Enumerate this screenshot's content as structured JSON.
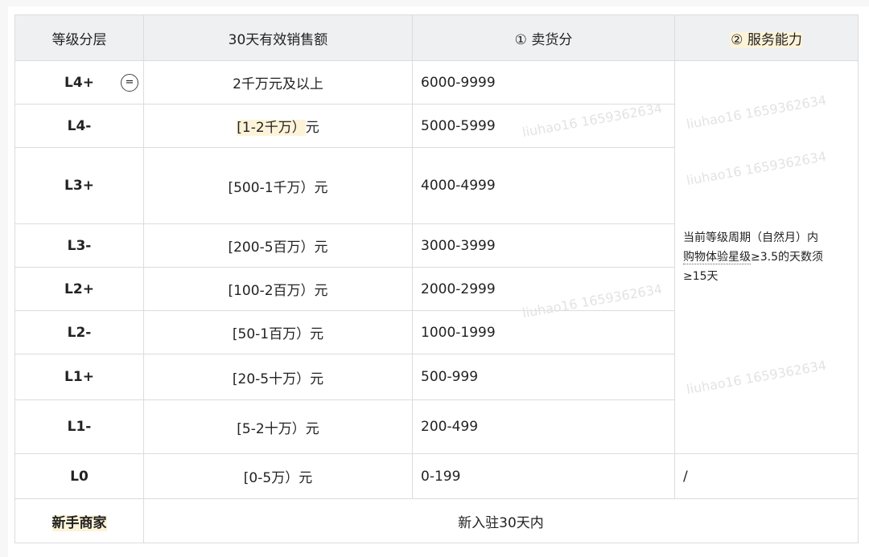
{
  "headers": [
    "等级分层",
    "30天有效销售额",
    "① 卖货分",
    "② 服务能力"
  ],
  "rows": [
    {
      "level": "L4+",
      "sales": "2千万元及以上",
      "score": "6000-9999"
    },
    {
      "level": "L4-",
      "sales_hl": "[1-2千万）",
      "sales_tail": "元",
      "score": "5000-5999"
    },
    {
      "level": "L3+",
      "sales": "[500-1千万）元",
      "score": "4000-4999"
    },
    {
      "level": "L3-",
      "sales": "[200-5百万）元",
      "score": "3000-3999"
    },
    {
      "level": "L2+",
      "sales": "[100-2百万）元",
      "score": "2000-2999"
    },
    {
      "level": "L2-",
      "sales": "[50-1百万）元",
      "score": "1000-1999"
    },
    {
      "level": "L1+",
      "sales": "[20-5十万）元",
      "score": "500-999"
    },
    {
      "level": "L1-",
      "sales": "[5-2十万）元",
      "score": "200-499"
    },
    {
      "level": "L0",
      "sales": "[0-5万）元",
      "score": "0-199",
      "service": "/"
    }
  ],
  "service_text_1": "当前等级周期（自然月）内",
  "service_text_2a": "购物体验星级",
  "service_text_2b": "≥3.5的天数须",
  "service_text_3": "≥15天",
  "newbie": {
    "level": "新手商家",
    "desc": "新入驻30天内"
  },
  "row_icon": "equals-circle-icon",
  "watermark": "liuhao16 1659362634"
}
